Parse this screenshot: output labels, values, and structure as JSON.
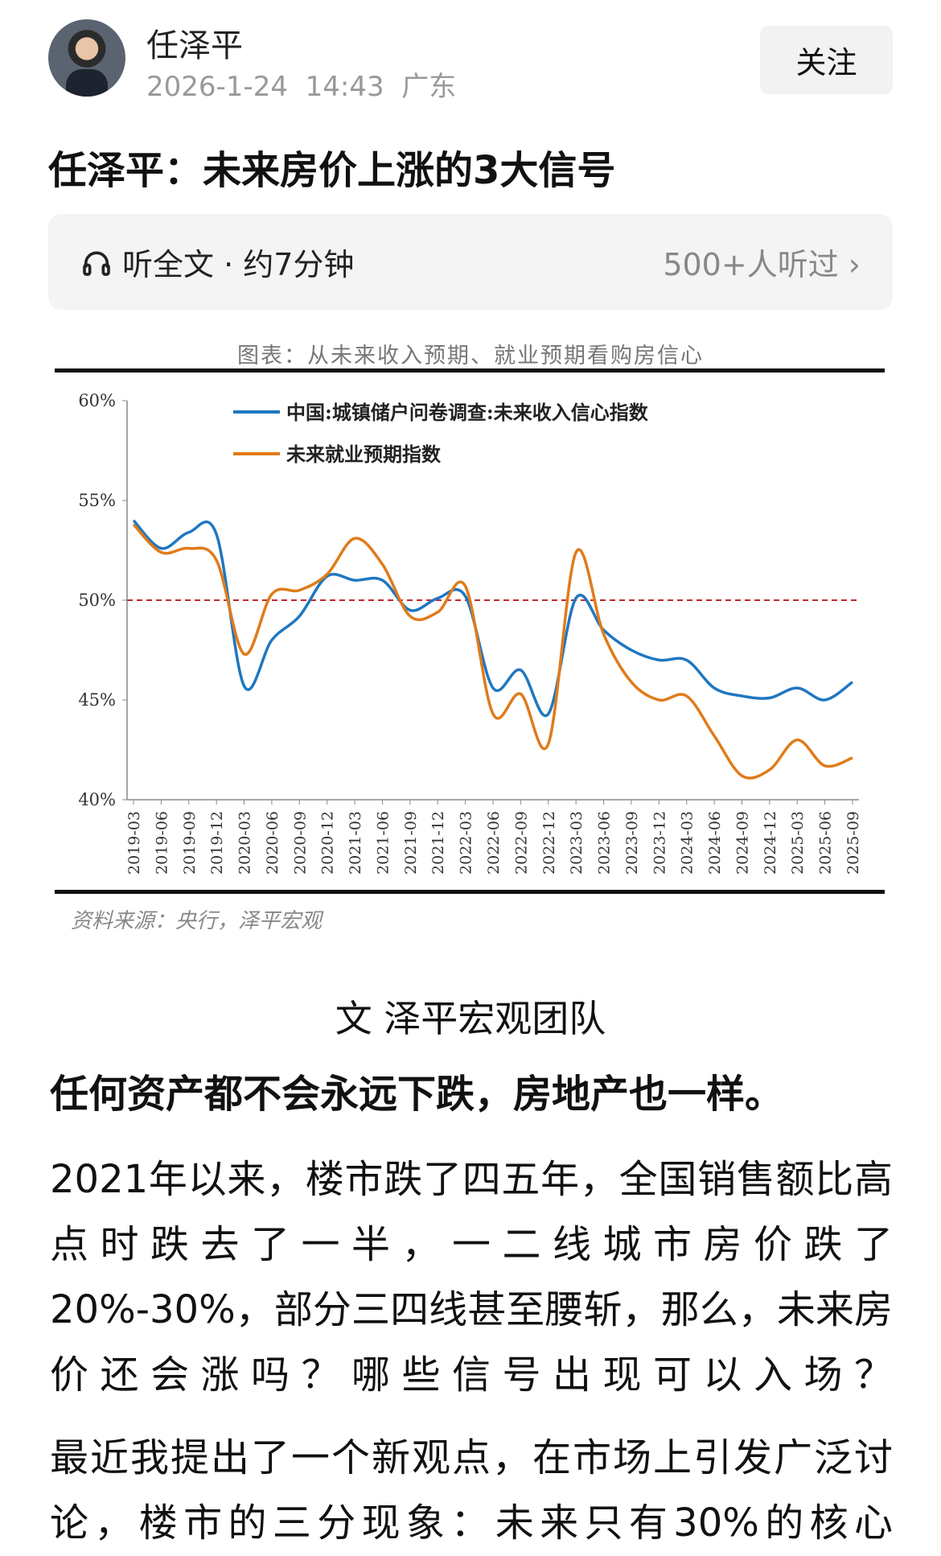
{
  "header": {
    "author": "任泽平",
    "date": "2026-1-24",
    "time": "14:43",
    "location": "广东",
    "follow_label": "关注"
  },
  "article": {
    "title": "任泽平：未来房价上涨的3大信号",
    "listen": {
      "label": "听全文 · 约7分钟",
      "listeners": "500+人听过",
      "icon": "headphones-icon",
      "chevron": "›"
    },
    "chart_caption": "图表：从未来收入预期、就业预期看购房信心",
    "chart_source": "资料来源：央行，泽平宏观",
    "byline": "文 泽平宏观团队",
    "paragraphs": [
      "任何资产都不会永远下跌，房地产也一样。",
      "2021年以来，楼市跌了四五年，全国销售额比高点时跌去了一半，一二线城市房价跌了20%-30%，部分三四线甚至腰斩，那么，未来房价还会涨吗？哪些信号出现可以入场？",
      "最近我提出了一个新观点，在市场上引发广泛讨论，楼市的三分现象：未来只有30%的核心"
    ]
  },
  "chart_data": {
    "type": "line",
    "ylim": [
      40,
      60
    ],
    "yticks": [
      "40%",
      "45%",
      "50%",
      "55%",
      "60%"
    ],
    "reference_line": {
      "y": 50,
      "color": "#c0282d",
      "style": "dashed"
    },
    "legend_placement": "top",
    "categories": [
      "2019-03",
      "2019-06",
      "2019-09",
      "2019-12",
      "2020-03",
      "2020-06",
      "2020-09",
      "2020-12",
      "2021-03",
      "2021-06",
      "2021-09",
      "2021-12",
      "2022-03",
      "2022-06",
      "2022-09",
      "2022-12",
      "2023-03",
      "2023-06",
      "2023-09",
      "2023-12",
      "2024-03",
      "2024-06",
      "2024-09",
      "2024-12",
      "2025-03",
      "2025-06",
      "2025-09"
    ],
    "series": [
      {
        "name": "中国:城镇储户问卷调查:未来收入信心指数",
        "color": "#1f77c0",
        "values": [
          54.0,
          52.6,
          53.4,
          53.3,
          45.7,
          48.0,
          49.2,
          51.2,
          51.0,
          51.0,
          49.5,
          50.1,
          50.2,
          45.6,
          46.5,
          44.3,
          50.1,
          48.5,
          47.5,
          47.0,
          47.0,
          45.6,
          45.2,
          45.1,
          45.6,
          45.0,
          45.9
        ]
      },
      {
        "name": "未来就业预期指数",
        "color": "#e07b1a",
        "values": [
          53.8,
          52.4,
          52.6,
          52.0,
          47.3,
          50.3,
          50.5,
          51.3,
          53.1,
          51.8,
          49.2,
          49.4,
          50.7,
          44.3,
          45.3,
          42.8,
          52.4,
          48.3,
          45.9,
          45.0,
          45.2,
          43.2,
          41.2,
          41.5,
          43.0,
          41.7,
          42.1
        ]
      }
    ]
  }
}
